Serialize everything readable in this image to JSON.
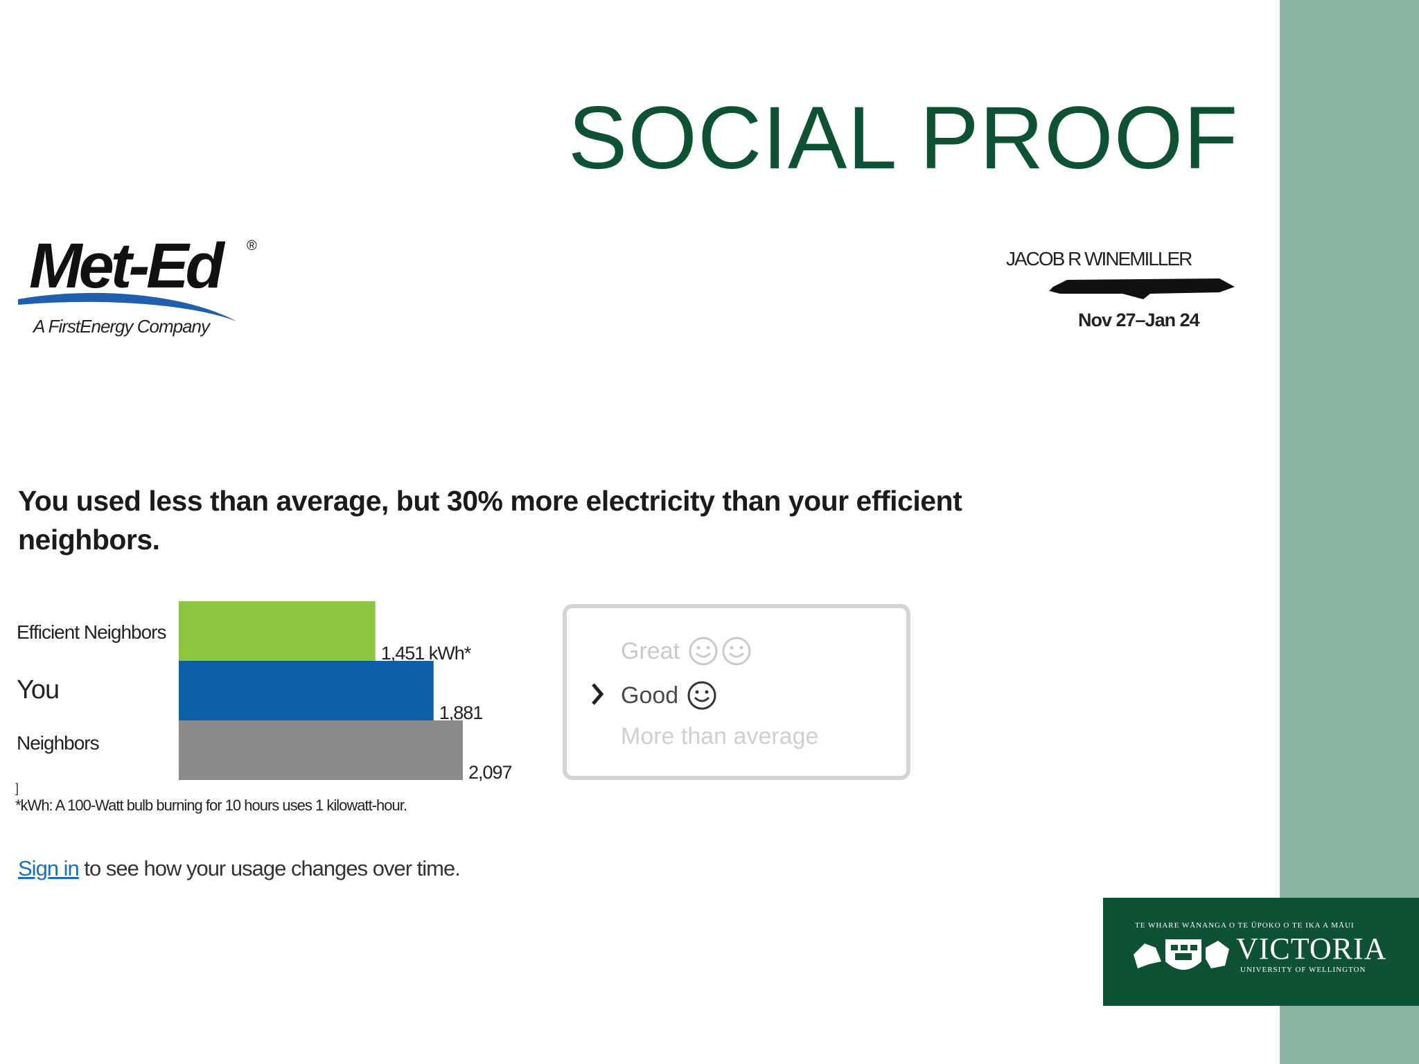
{
  "slide": {
    "title": "SOCIAL PROOF"
  },
  "logo": {
    "name": "Met-Ed",
    "registered": "®",
    "tagline": "A FirstEnergy Company"
  },
  "account": {
    "customer_name": "JACOB R WINEMILLER",
    "period": "Nov 27–Jan 24"
  },
  "report": {
    "headline": "You used less than average, but 30% more electricity than your efficient neighbors.",
    "footnote_mark": "]",
    "footnote": "*kWh: A 100-Watt bulb burning for 10 hours uses 1 kilowatt-hour.",
    "signin_link": "Sign in",
    "signin_rest": " to see how your usage changes over time."
  },
  "chart_data": {
    "type": "bar",
    "orientation": "horizontal",
    "categories": [
      "Efficient Neighbors",
      "You",
      "Neighbors"
    ],
    "values": [
      1451,
      1881,
      2097
    ],
    "value_labels": [
      "1,451 kWh*",
      "1,881",
      "2,097"
    ],
    "colors": [
      "#8dc63f",
      "#0b5ea8",
      "#8a8a8c"
    ],
    "xlim": [
      0,
      2097
    ],
    "grid": false
  },
  "rating": {
    "great": "Great",
    "good": "Good",
    "more": "More than average",
    "selected": "Good"
  },
  "badge": {
    "top_line": "TE WHARE WĀNANGA O TE ŪPOKO O TE IKA A MĀUI",
    "name": "VICTORIA",
    "sub_line": "UNIVERSITY OF WELLINGTON",
    "color": "#0c5233"
  },
  "icons": {
    "arrow": "chevron-right-icon",
    "smiley": "smiley-icon"
  }
}
